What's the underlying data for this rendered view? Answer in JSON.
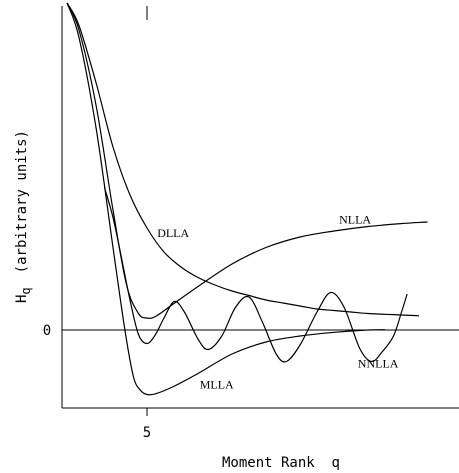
{
  "chart_data": {
    "type": "line",
    "xlabel": "Moment Rank  q",
    "ylabel_prefix": "H",
    "ylabel_sub": "q",
    "ylabel_units": "(arbitrary units)",
    "xtick_labels": [
      {
        "x": 5,
        "label": "5"
      }
    ],
    "ytick_labels": [
      {
        "y": 0,
        "label": "0"
      }
    ],
    "xlim": [
      0,
      22
    ],
    "ylim": [
      -5,
      22
    ],
    "grid": false,
    "legend": "none (curves labelled directly)",
    "series": [
      {
        "name": "DLLA",
        "label_at": [
          5.6,
          6.2
        ],
        "points": [
          [
            0.3,
            21.8
          ],
          [
            1,
            20.3
          ],
          [
            2,
            16.5
          ],
          [
            3,
            12.2
          ],
          [
            4,
            9
          ],
          [
            5,
            6.8
          ],
          [
            6,
            5.2
          ],
          [
            7,
            4.2
          ],
          [
            8,
            3.5
          ],
          [
            9,
            3
          ],
          [
            10,
            2.6
          ],
          [
            11,
            2.3
          ],
          [
            12,
            2
          ],
          [
            13,
            1.8
          ],
          [
            14,
            1.6
          ],
          [
            15,
            1.4
          ],
          [
            16,
            1.3
          ],
          [
            17,
            1.2
          ],
          [
            18,
            1.1
          ],
          [
            19,
            1.05
          ],
          [
            20,
            1
          ],
          [
            21,
            0.95
          ]
        ]
      },
      {
        "name": "NLLA",
        "label_at": [
          16.3,
          7.1
        ],
        "points": [
          [
            0.3,
            21.8
          ],
          [
            1,
            20
          ],
          [
            2,
            15
          ],
          [
            3,
            8
          ],
          [
            3.8,
            3
          ],
          [
            4.5,
            1.1
          ],
          [
            5,
            0.8
          ],
          [
            5.5,
            0.9
          ],
          [
            6.5,
            1.7
          ],
          [
            8,
            2.9
          ],
          [
            10,
            4.4
          ],
          [
            12,
            5.5
          ],
          [
            14,
            6.2
          ],
          [
            16,
            6.6
          ],
          [
            18,
            6.9
          ],
          [
            20,
            7.1
          ],
          [
            21.5,
            7.2
          ]
        ]
      },
      {
        "name": "MLLA",
        "label_at": [
          8.1,
          -3.9
        ],
        "points": [
          [
            0.3,
            21.8
          ],
          [
            1,
            19.5
          ],
          [
            2,
            13.5
          ],
          [
            3,
            5.5
          ],
          [
            3.7,
            0
          ],
          [
            4.2,
            -3.1
          ],
          [
            4.6,
            -4
          ],
          [
            5,
            -4.3
          ],
          [
            5.5,
            -4.25
          ],
          [
            6.5,
            -3.8
          ],
          [
            8,
            -2.9
          ],
          [
            10,
            -1.6
          ],
          [
            12,
            -0.8
          ],
          [
            14,
            -0.4
          ],
          [
            16,
            -0.15
          ],
          [
            18,
            0
          ],
          [
            19,
            0.02
          ]
        ]
      },
      {
        "name": "NNLLA",
        "label_at": [
          17.4,
          -2.5
        ],
        "points": [
          [
            2.5,
            9.5
          ],
          [
            3,
            7.5
          ],
          [
            3.5,
            4.8
          ],
          [
            4,
            2
          ],
          [
            4.5,
            -0.3
          ],
          [
            5,
            -0.9
          ],
          [
            5.5,
            -0.3
          ],
          [
            6,
            0.8
          ],
          [
            6.6,
            1.9
          ],
          [
            7.2,
            1.2
          ],
          [
            8,
            -0.6
          ],
          [
            8.6,
            -1.3
          ],
          [
            9.4,
            -0.4
          ],
          [
            10.2,
            1.5
          ],
          [
            11,
            2.2
          ],
          [
            11.8,
            0.5
          ],
          [
            12.6,
            -1.6
          ],
          [
            13.2,
            -2.1
          ],
          [
            14,
            -1
          ],
          [
            15,
            1.2
          ],
          [
            15.8,
            2.5
          ],
          [
            16.6,
            1.5
          ],
          [
            17.5,
            -1.2
          ],
          [
            18.2,
            -2.1
          ],
          [
            18.8,
            -1.5
          ],
          [
            19.5,
            -0.4
          ],
          [
            20,
            1.3
          ],
          [
            20.3,
            2.4
          ]
        ]
      }
    ]
  }
}
